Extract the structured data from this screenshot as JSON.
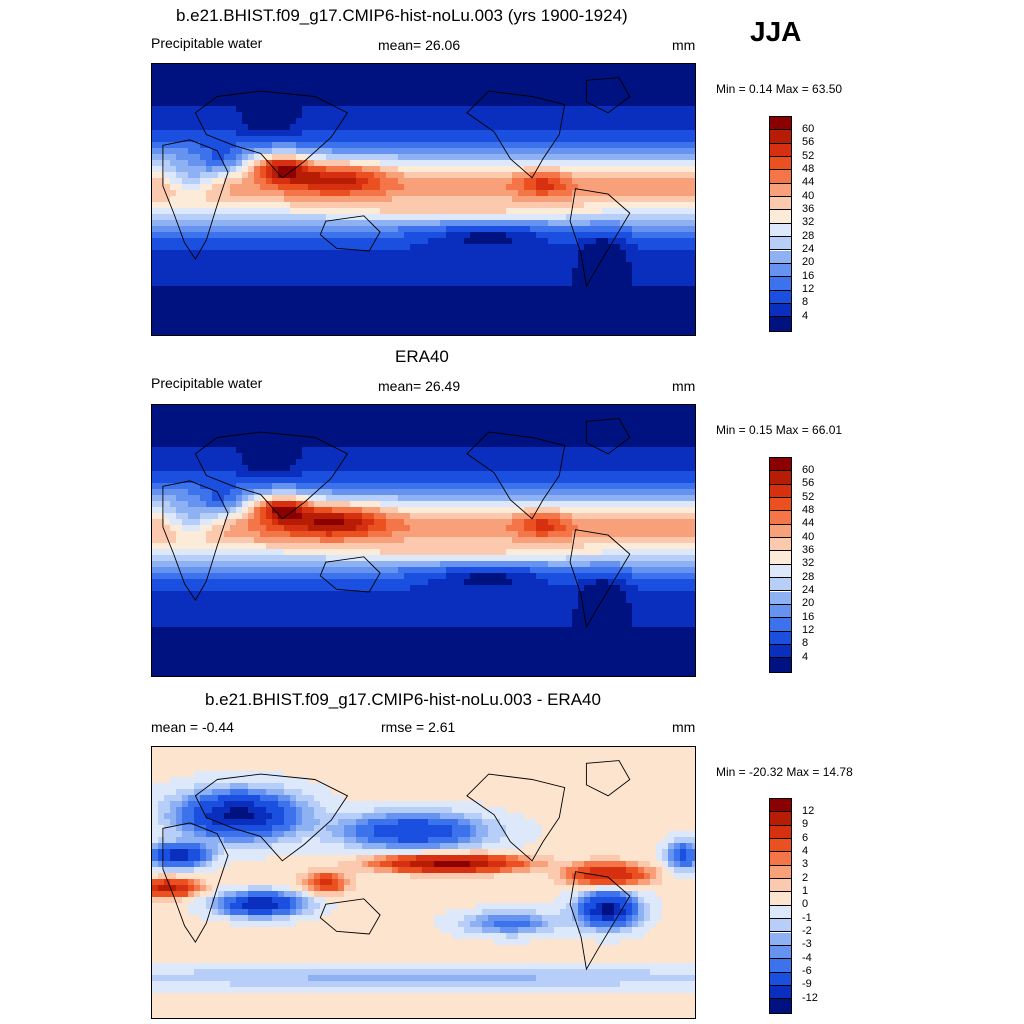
{
  "season": "JJA",
  "panels": [
    {
      "title": "b.e21.BHIST.f09_g17.CMIP6-hist-noLu.003 (yrs 1900-1924)",
      "left_label": "Precipitable water",
      "center_label": "mean=  26.06",
      "right_label": "mm",
      "minmax": "Min =   0.14 Max =  63.50",
      "kind": "abs"
    },
    {
      "title": "ERA40",
      "left_label": "Precipitable water",
      "center_label": "mean=  26.49",
      "right_label": "mm",
      "minmax": "Min =   0.15 Max =  66.01",
      "kind": "abs"
    },
    {
      "title": "b.e21.BHIST.f09_g17.CMIP6-hist-noLu.003 - ERA40",
      "left_label": "mean =  -0.44",
      "center_label": "rmse =   2.61",
      "right_label": "mm",
      "minmax": "Min = -20.32 Max =  14.78",
      "kind": "diff"
    }
  ],
  "colorbars": {
    "abs": {
      "labels": [
        "60",
        "56",
        "52",
        "48",
        "44",
        "40",
        "36",
        "32",
        "28",
        "24",
        "20",
        "16",
        "12",
        "8",
        "4"
      ],
      "colors": [
        "#8b0000",
        "#b71c05",
        "#d63010",
        "#ea5020",
        "#f47548",
        "#f8a07a",
        "#fbc9ad",
        "#fdebd9",
        "#dde9fb",
        "#b6cef8",
        "#8eb1f3",
        "#6593ef",
        "#3c72eb",
        "#1b4fe0",
        "#0a2fbe",
        "#00127f"
      ]
    },
    "diff": {
      "labels": [
        "12",
        "9",
        "6",
        "4",
        "3",
        "2",
        "1",
        "0",
        "-1",
        "-2",
        "-3",
        "-4",
        "-6",
        "-9",
        "-12"
      ],
      "colors": [
        "#8b0000",
        "#b71c05",
        "#d63010",
        "#ea5020",
        "#f47548",
        "#f8a07a",
        "#fbc9ad",
        "#fde4cf",
        "#dde9fb",
        "#b6cef8",
        "#8eb1f3",
        "#6593ef",
        "#3c72eb",
        "#1b4fe0",
        "#0a2fbe",
        "#00127f"
      ]
    }
  },
  "chart_data": [
    {
      "type": "heatmap",
      "title": "b.e21.BHIST.f09_g17.CMIP6-hist-noLu.003 (yrs 1900-1924)",
      "variable": "Precipitable water",
      "units": "mm",
      "season": "JJA",
      "mean": 26.06,
      "min": 0.14,
      "max": 63.5,
      "contour_levels": [
        4,
        8,
        12,
        16,
        20,
        24,
        28,
        32,
        36,
        40,
        44,
        48,
        52,
        56,
        60
      ]
    },
    {
      "type": "heatmap",
      "title": "ERA40",
      "variable": "Precipitable water",
      "units": "mm",
      "season": "JJA",
      "mean": 26.49,
      "min": 0.15,
      "max": 66.01,
      "contour_levels": [
        4,
        8,
        12,
        16,
        20,
        24,
        28,
        32,
        36,
        40,
        44,
        48,
        52,
        56,
        60
      ]
    },
    {
      "type": "heatmap",
      "title": "b.e21.BHIST.f09_g17.CMIP6-hist-noLu.003 - ERA40",
      "units": "mm",
      "season": "JJA",
      "mean": -0.44,
      "rmse": 2.61,
      "min": -20.32,
      "max": 14.78,
      "contour_levels": [
        -12,
        -9,
        -6,
        -4,
        -3,
        -2,
        -1,
        0,
        1,
        2,
        3,
        4,
        6,
        9,
        12
      ]
    }
  ]
}
